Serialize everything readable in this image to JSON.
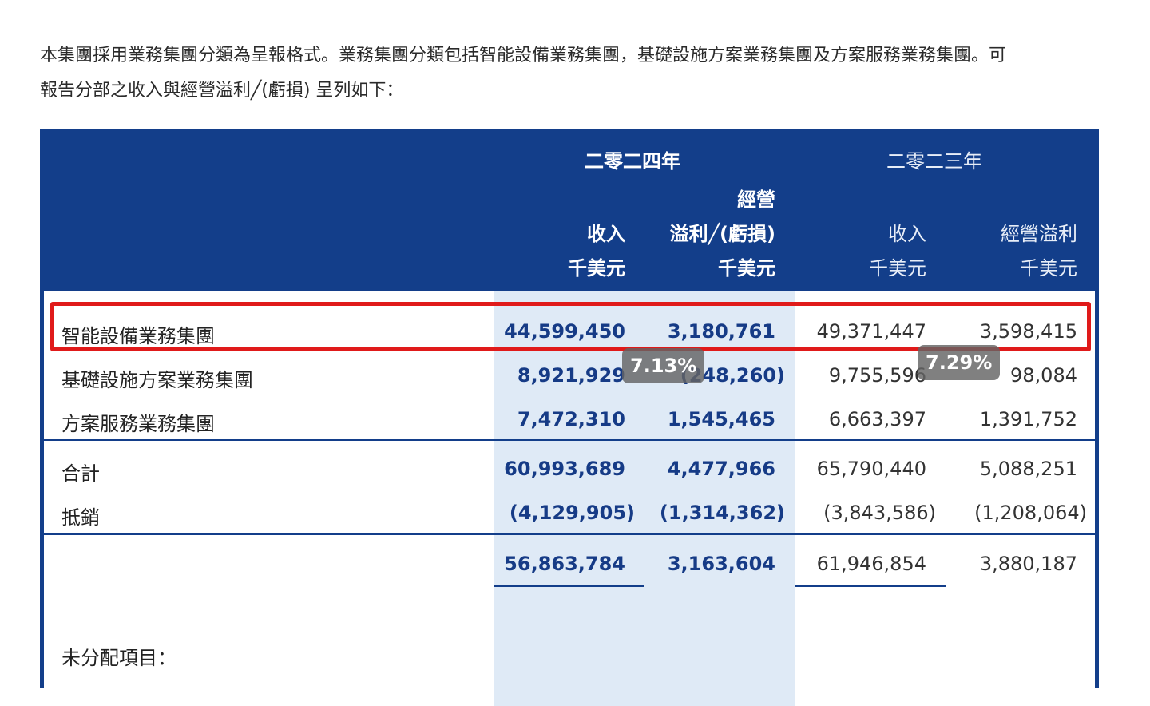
{
  "intro": {
    "line1": "本集團採用業務集團分類為呈報格式。業務集團分類包括智能設備業務集團，基礎設施方案業務集團及方案服務業務集團。可",
    "line2": "報告分部之收入與經營溢利╱(虧損) 呈列如下："
  },
  "header": {
    "year_2024": "二零二四年",
    "year_2023": "二零二三年",
    "col_2024_revenue": "收入",
    "col_2024_op_top": "經營",
    "col_2024_op_bottom": "溢利╱(虧損)",
    "col_2023_revenue": "收入",
    "col_2023_op": "經營溢利",
    "unit": "千美元"
  },
  "rows": [
    {
      "label": "智能設備業務集團",
      "rev2024": "44,599,450",
      "op2024": "3,180,761",
      "rev2023": "49,371,447",
      "op2023": "3,598,415"
    },
    {
      "label": "基礎設施方案業務集團",
      "rev2024": "8,921,929",
      "op2024": "(248,260)",
      "rev2023": "9,755,596",
      "op2023": "98,084"
    },
    {
      "label": "方案服務業務集團",
      "rev2024": "7,472,310",
      "op2024": "1,545,465",
      "rev2023": "6,663,397",
      "op2023": "1,391,752"
    }
  ],
  "total": {
    "label": "合計",
    "rev2024": "60,993,689",
    "op2024": "4,477,966",
    "rev2023": "65,790,440",
    "op2023": "5,088,251"
  },
  "elimination": {
    "label": "抵銷",
    "rev2024": "(4,129,905)",
    "op2024": "(1,314,362)",
    "rev2023": "(3,843,586)",
    "op2023": "(1,208,064)"
  },
  "net": {
    "rev2024": "56,863,784",
    "op2024": "3,163,604",
    "rev2023": "61,946,854",
    "op2023": "3,880,187"
  },
  "next_section_label": "未分配項目：",
  "badges": {
    "pct_2024": "7.13%",
    "pct_2023": "7.29%"
  },
  "colors": {
    "header_blue": "#133e8a",
    "highlight_column": "#dfeaf6",
    "highlight_box": "#e01a1a",
    "badge": "#646464"
  }
}
